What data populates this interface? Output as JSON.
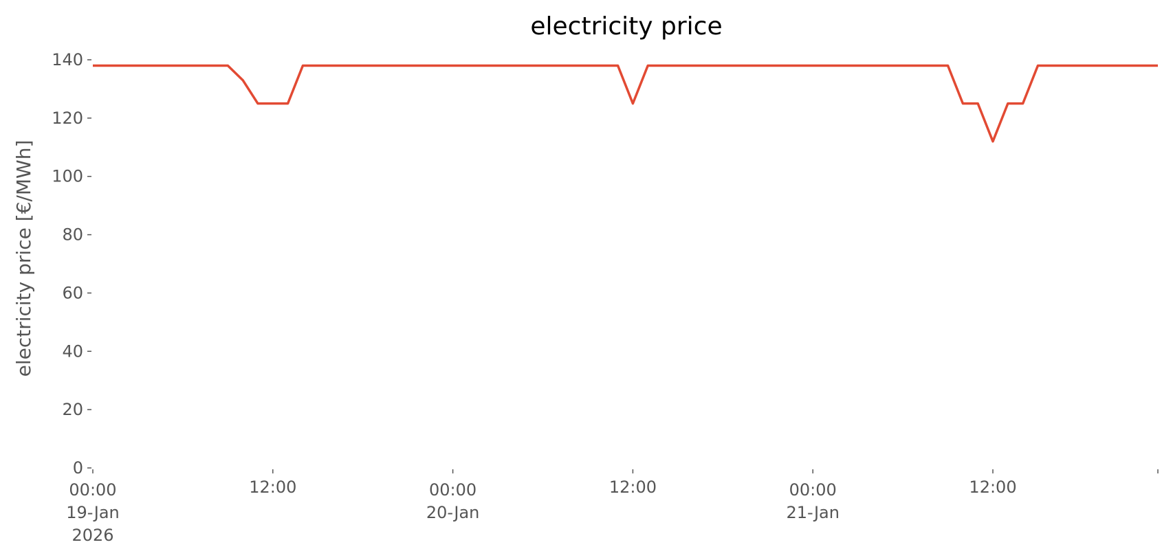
{
  "chart_data": {
    "type": "line",
    "title": "electricity price",
    "ylabel": "electricity price [€/MWh]",
    "x": [
      "2026-01-19T00:00",
      "2026-01-19T01:00",
      "2026-01-19T02:00",
      "2026-01-19T03:00",
      "2026-01-19T04:00",
      "2026-01-19T05:00",
      "2026-01-19T06:00",
      "2026-01-19T07:00",
      "2026-01-19T08:00",
      "2026-01-19T09:00",
      "2026-01-19T10:00",
      "2026-01-19T11:00",
      "2026-01-19T12:00",
      "2026-01-19T13:00",
      "2026-01-19T14:00",
      "2026-01-19T15:00",
      "2026-01-19T16:00",
      "2026-01-19T17:00",
      "2026-01-19T18:00",
      "2026-01-19T19:00",
      "2026-01-19T20:00",
      "2026-01-19T21:00",
      "2026-01-19T22:00",
      "2026-01-19T23:00",
      "2026-01-20T00:00",
      "2026-01-20T01:00",
      "2026-01-20T02:00",
      "2026-01-20T03:00",
      "2026-01-20T04:00",
      "2026-01-20T05:00",
      "2026-01-20T06:00",
      "2026-01-20T07:00",
      "2026-01-20T08:00",
      "2026-01-20T09:00",
      "2026-01-20T10:00",
      "2026-01-20T11:00",
      "2026-01-20T12:00",
      "2026-01-20T13:00",
      "2026-01-20T14:00",
      "2026-01-20T15:00",
      "2026-01-20T16:00",
      "2026-01-20T17:00",
      "2026-01-20T18:00",
      "2026-01-20T19:00",
      "2026-01-20T20:00",
      "2026-01-20T21:00",
      "2026-01-20T22:00",
      "2026-01-20T23:00",
      "2026-01-21T00:00",
      "2026-01-21T01:00",
      "2026-01-21T02:00",
      "2026-01-21T03:00",
      "2026-01-21T04:00",
      "2026-01-21T05:00",
      "2026-01-21T06:00",
      "2026-01-21T07:00",
      "2026-01-21T08:00",
      "2026-01-21T09:00",
      "2026-01-21T10:00",
      "2026-01-21T11:00",
      "2026-01-21T12:00",
      "2026-01-21T13:00",
      "2026-01-21T14:00",
      "2026-01-21T15:00",
      "2026-01-21T16:00",
      "2026-01-21T17:00",
      "2026-01-21T18:00",
      "2026-01-21T19:00",
      "2026-01-21T20:00",
      "2026-01-21T21:00",
      "2026-01-21T22:00",
      "2026-01-21T23:00"
    ],
    "series": [
      {
        "name": "electricity price",
        "color": "#e24a33",
        "values": [
          138,
          138,
          138,
          138,
          138,
          138,
          138,
          138,
          138,
          138,
          133,
          125,
          125,
          125,
          138,
          138,
          138,
          138,
          138,
          138,
          138,
          138,
          138,
          138,
          138,
          138,
          138,
          138,
          138,
          138,
          138,
          138,
          138,
          138,
          138,
          138,
          125,
          138,
          138,
          138,
          138,
          138,
          138,
          138,
          138,
          138,
          138,
          138,
          138,
          138,
          138,
          138,
          138,
          138,
          138,
          138,
          138,
          138,
          125,
          125,
          112,
          125,
          125,
          138,
          138,
          138,
          138,
          138,
          138,
          138,
          138,
          138
        ]
      }
    ],
    "xlim": [
      "2026-01-19T00:00",
      "2026-01-21T23:00"
    ],
    "xticks": [
      {
        "value": "2026-01-19T00:00",
        "label": "00:00\n19-Jan\n2026"
      },
      {
        "value": "2026-01-19T12:00",
        "label": "12:00"
      },
      {
        "value": "2026-01-20T00:00",
        "label": "00:00\n20-Jan"
      },
      {
        "value": "2026-01-20T12:00",
        "label": "12:00"
      },
      {
        "value": "2026-01-21T00:00",
        "label": "00:00\n21-Jan"
      },
      {
        "value": "2026-01-21T12:00",
        "label": "12:00"
      }
    ],
    "ylim": [
      0,
      140
    ],
    "yticks": [
      0,
      20,
      40,
      60,
      80,
      100,
      120,
      140
    ],
    "grid": false
  }
}
